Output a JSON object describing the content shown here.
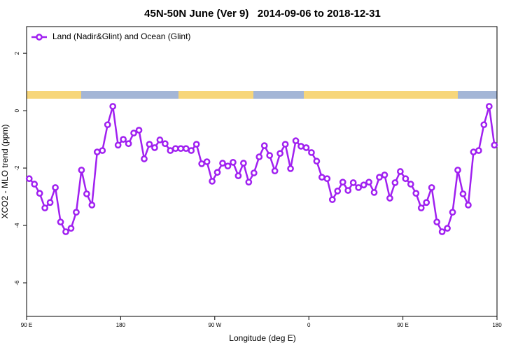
{
  "chart_data": {
    "type": "line",
    "title": "45N-50N June (Ver 9)   2014-09-06 to 2018-12-31",
    "x_label": "Longitude (deg E)",
    "y_label": "XCO2 - MLO trend (ppm)",
    "x": [
      92.5,
      97.5,
      102.5,
      107.5,
      112.5,
      117.5,
      122.5,
      127.5,
      132.5,
      137.5,
      142.5,
      147.5,
      152.5,
      157.5,
      162.5,
      167.5,
      172.5,
      177.5,
      182.5,
      187.5,
      192.5,
      197.5,
      202.5,
      207.5,
      212.5,
      217.5,
      222.5,
      227.5,
      232.5,
      237.5,
      242.5,
      247.5,
      252.5,
      257.5,
      262.5,
      267.5,
      272.5,
      277.5,
      282.5,
      287.5,
      292.5,
      297.5,
      302.5,
      307.5,
      312.5,
      317.5,
      322.5,
      327.5,
      332.5,
      337.5,
      342.5,
      347.5,
      352.5,
      357.5,
      362.5,
      367.5,
      372.5,
      377.5,
      382.5,
      387.5,
      392.5,
      397.5,
      402.5,
      407.5,
      412.5,
      417.5,
      422.5,
      427.5,
      432.5,
      437.5,
      442.5,
      447.5,
      452.5,
      457.5,
      462.5,
      467.5,
      472.5,
      477.5,
      482.5,
      487.5,
      492.5,
      497.5,
      502.5,
      507.5,
      512.5,
      517.5,
      522.5,
      527.5,
      532.5,
      537.5
    ],
    "series": [
      {
        "name": "Land (Nadir&Glint) and Ocean (Glint)",
        "color": "#a020f0",
        "values": [
          -2.37,
          -2.56,
          -2.88,
          -3.39,
          -3.2,
          -2.68,
          -3.88,
          -4.22,
          -4.1,
          -3.54,
          -2.07,
          -2.9,
          -3.29,
          -1.44,
          -1.39,
          -0.49,
          0.15,
          -1.2,
          -1.0,
          -1.15,
          -0.78,
          -0.68,
          -1.68,
          -1.17,
          -1.29,
          -1.02,
          -1.15,
          -1.39,
          -1.32,
          -1.32,
          -1.32,
          -1.39,
          -1.17,
          -1.85,
          -1.78,
          -2.46,
          -2.15,
          -1.83,
          -1.93,
          -1.8,
          -2.27,
          -1.83,
          -2.49,
          -2.17,
          -1.61,
          -1.22,
          -1.56,
          -2.1,
          -1.49,
          -1.17,
          -2.02,
          -1.05,
          -1.24,
          -1.29,
          -1.46,
          -1.76,
          -2.32,
          -2.37,
          -3.1,
          -2.8,
          -2.49,
          -2.78,
          -2.51,
          -2.68,
          -2.59,
          -2.49,
          -2.85,
          -2.32,
          -2.24,
          -3.05,
          -2.51,
          -2.12,
          -2.37,
          -2.56,
          -2.88,
          -3.39,
          -3.2,
          -2.68,
          -3.88,
          -4.22,
          -4.1,
          -3.54,
          -2.07,
          -2.9,
          -3.29,
          -1.44,
          -1.39,
          -0.49,
          0.15,
          -1.2
        ]
      }
    ],
    "xlim": [
      90,
      540
    ],
    "xticks": [
      {
        "value": 90,
        "label": "90 E"
      },
      180,
      {
        "value": 270,
        "label": "90 W"
      },
      {
        "value": 360,
        "label": "0"
      },
      {
        "value": 450,
        "label": "90 E"
      },
      {
        "value": 540,
        "label": "180"
      }
    ],
    "ylim": [
      -7.17,
      2.93
    ],
    "yticks": [
      -6,
      -4,
      -2,
      0,
      2
    ],
    "legend": "top-left",
    "grid": false
  }
}
